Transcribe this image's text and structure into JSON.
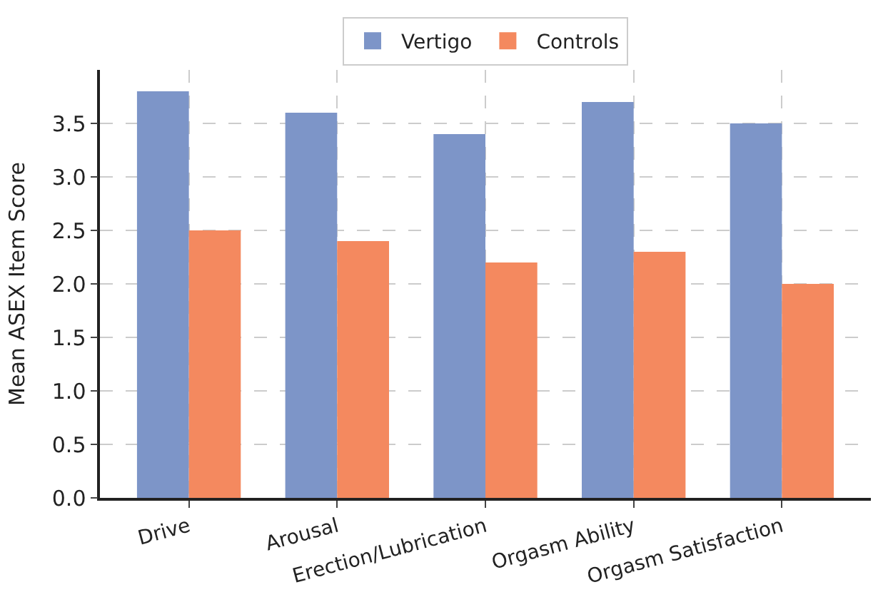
{
  "chart_data": {
    "type": "bar",
    "ylabel": "Mean ASEX Item Score",
    "categories": [
      "Drive",
      "Arousal",
      "Erection/Lubrication",
      "Orgasm Ability",
      "Orgasm Satisfaction"
    ],
    "series": [
      {
        "name": "Vertigo",
        "color": "#7d95c8",
        "values": [
          3.8,
          3.6,
          3.4,
          3.7,
          3.5
        ]
      },
      {
        "name": "Controls",
        "color": "#f4895f",
        "values": [
          2.5,
          2.4,
          2.2,
          2.3,
          2.0
        ]
      }
    ],
    "ylim": [
      0,
      4.0
    ],
    "yticks": [
      {
        "value": 0,
        "label": "0.0"
      },
      0.5,
      {
        "value": 1,
        "label": "1.0"
      },
      1.5,
      {
        "value": 2,
        "label": "2.0"
      },
      2.5,
      {
        "value": 3,
        "label": "3.0"
      },
      3.5
    ],
    "grid": true,
    "legend": "top"
  }
}
